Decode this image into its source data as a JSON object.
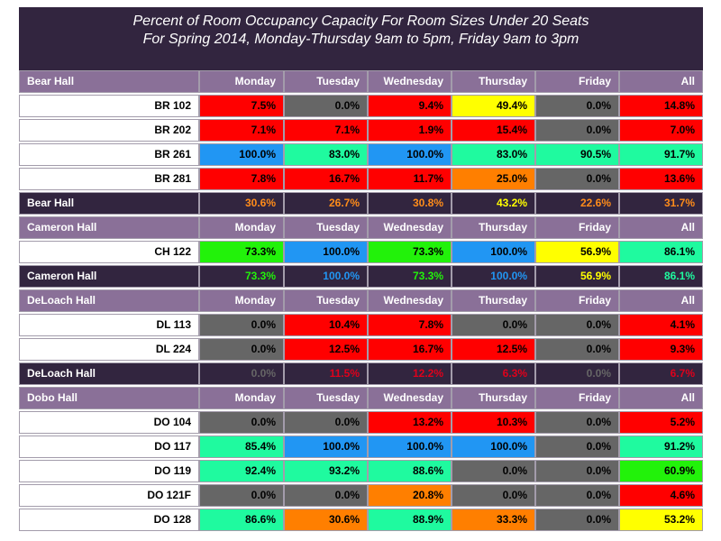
{
  "chart_data": {
    "type": "table",
    "title_line1": "Percent of Room Occupancy Capacity For Room Sizes Under 20 Seats",
    "title_line2": "For Spring 2014, Monday-Thursday 9am to 5pm, Friday 9am to 3pm",
    "columns": [
      "Monday",
      "Tuesday",
      "Wednesday",
      "Thursday",
      "Friday",
      "All"
    ],
    "colors": {
      "red": "#ff0000",
      "gray": "#666666",
      "yellow": "#ffff00",
      "blue": "#2196f3",
      "teal": "#1ffa9f",
      "green": "#22f20a",
      "orange": "#ff7f00",
      "summary_orange": "#ff8c1a",
      "summary_yellow": "#ffff00",
      "summary_green": "#22f20a",
      "summary_blue": "#2196f3",
      "summary_teal": "#1ffa9f",
      "summary_gray": "#666666",
      "summary_red": "#e0001b",
      "header_bg": "#8a7098",
      "summary_bg": "#32253f"
    },
    "halls": [
      {
        "name": "Bear Hall",
        "rooms": [
          {
            "name": "BR 102",
            "values": [
              "7.5%",
              "0.0%",
              "9.4%",
              "49.4%",
              "0.0%",
              "14.8%"
            ],
            "colors": [
              "red",
              "gray",
              "red",
              "yellow",
              "gray",
              "red"
            ]
          },
          {
            "name": "BR 202",
            "values": [
              "7.1%",
              "7.1%",
              "1.9%",
              "15.4%",
              "0.0%",
              "7.0%"
            ],
            "colors": [
              "red",
              "red",
              "red",
              "red",
              "gray",
              "red"
            ]
          },
          {
            "name": "BR 261",
            "values": [
              "100.0%",
              "83.0%",
              "100.0%",
              "83.0%",
              "90.5%",
              "91.7%"
            ],
            "colors": [
              "blue",
              "teal",
              "blue",
              "teal",
              "teal",
              "teal"
            ]
          },
          {
            "name": "BR 281",
            "values": [
              "7.8%",
              "16.7%",
              "11.7%",
              "25.0%",
              "0.0%",
              "13.6%"
            ],
            "colors": [
              "red",
              "red",
              "red",
              "orange",
              "gray",
              "red"
            ]
          }
        ],
        "summary": {
          "name": "Bear Hall",
          "values": [
            "30.6%",
            "26.7%",
            "30.8%",
            "43.2%",
            "22.6%",
            "31.7%"
          ],
          "colors": [
            "summary_orange",
            "summary_orange",
            "summary_orange",
            "summary_yellow",
            "summary_orange",
            "summary_orange"
          ]
        }
      },
      {
        "name": "Cameron Hall",
        "rooms": [
          {
            "name": "CH 122",
            "values": [
              "73.3%",
              "100.0%",
              "73.3%",
              "100.0%",
              "56.9%",
              "86.1%"
            ],
            "colors": [
              "green",
              "blue",
              "green",
              "blue",
              "yellow",
              "teal"
            ]
          }
        ],
        "summary": {
          "name": "Cameron Hall",
          "values": [
            "73.3%",
            "100.0%",
            "73.3%",
            "100.0%",
            "56.9%",
            "86.1%"
          ],
          "colors": [
            "summary_green",
            "summary_blue",
            "summary_green",
            "summary_blue",
            "summary_yellow",
            "summary_teal"
          ]
        }
      },
      {
        "name": "DeLoach Hall",
        "rooms": [
          {
            "name": "DL 113",
            "values": [
              "0.0%",
              "10.4%",
              "7.8%",
              "0.0%",
              "0.0%",
              "4.1%"
            ],
            "colors": [
              "gray",
              "red",
              "red",
              "gray",
              "gray",
              "red"
            ]
          },
          {
            "name": "DL 224",
            "values": [
              "0.0%",
              "12.5%",
              "16.7%",
              "12.5%",
              "0.0%",
              "9.3%"
            ],
            "colors": [
              "gray",
              "red",
              "red",
              "red",
              "gray",
              "red"
            ]
          }
        ],
        "summary": {
          "name": "DeLoach Hall",
          "values": [
            "0.0%",
            "11.5%",
            "12.2%",
            "6.3%",
            "0.0%",
            "6.7%"
          ],
          "colors": [
            "summary_gray",
            "summary_red",
            "summary_red",
            "summary_red",
            "summary_gray",
            "summary_red"
          ]
        }
      },
      {
        "name": "Dobo Hall",
        "rooms": [
          {
            "name": "DO 104",
            "values": [
              "0.0%",
              "0.0%",
              "13.2%",
              "10.3%",
              "0.0%",
              "5.2%"
            ],
            "colors": [
              "gray",
              "gray",
              "red",
              "red",
              "gray",
              "red"
            ]
          },
          {
            "name": "DO 117",
            "values": [
              "85.4%",
              "100.0%",
              "100.0%",
              "100.0%",
              "0.0%",
              "91.2%"
            ],
            "colors": [
              "teal",
              "blue",
              "blue",
              "blue",
              "gray",
              "teal"
            ]
          },
          {
            "name": "DO 119",
            "values": [
              "92.4%",
              "93.2%",
              "88.6%",
              "0.0%",
              "0.0%",
              "60.9%"
            ],
            "colors": [
              "teal",
              "teal",
              "teal",
              "gray",
              "gray",
              "green"
            ]
          },
          {
            "name": "DO 121F",
            "values": [
              "0.0%",
              "0.0%",
              "20.8%",
              "0.0%",
              "0.0%",
              "4.6%"
            ],
            "colors": [
              "gray",
              "gray",
              "orange",
              "gray",
              "gray",
              "red"
            ]
          },
          {
            "name": "DO 128",
            "values": [
              "86.6%",
              "30.6%",
              "88.9%",
              "33.3%",
              "0.0%",
              "53.2%"
            ],
            "colors": [
              "teal",
              "orange",
              "teal",
              "orange",
              "gray",
              "yellow"
            ]
          }
        ]
      }
    ]
  }
}
